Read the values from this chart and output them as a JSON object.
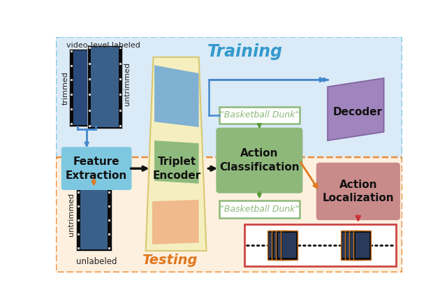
{
  "training_label": "Training",
  "testing_label": "Testing",
  "bg_training_color": "#daeaf7",
  "bg_testing_color": "#fef0df",
  "bg_training_edge": "#7ec8e3",
  "bg_testing_edge": "#e88c3a",
  "feature_extraction_color": "#7dc8e0",
  "action_classification_color": "#8db87a",
  "action_localization_color": "#c98a8a",
  "decoder_color": "#9b7bb8",
  "triplet_bg_color": "#f5efc0",
  "triplet_blue_color": "#7aaed4",
  "triplet_green_color": "#8ab87a",
  "triplet_orange_color": "#f0b88a",
  "basketball_dunk_border": "#8db87a",
  "basketball_dunk_text": "#8db87a",
  "arrow_blue": "#4488cc",
  "arrow_black": "#111111",
  "arrow_orange": "#e07820",
  "arrow_dark_red": "#cc3333",
  "arrow_green": "#5a9a3a",
  "dashed_blue": "#4488cc",
  "dashed_orange": "#e07820",
  "video_level_labeled": "video-level labeled",
  "trimmed_label": "trimmed",
  "untrimmed_label": "untrimmed",
  "unlabeled_label": "unlabeled",
  "feature_extraction_label": "Feature\nExtraction",
  "triplet_encoder_label": "Triplet\nEncoder",
  "action_classification_label": "Action\nClassification",
  "action_localization_label": "Action\nLocalization",
  "decoder_label": "Decoder",
  "basketball_dunk_text_val": "\"Basketball Dunk\""
}
